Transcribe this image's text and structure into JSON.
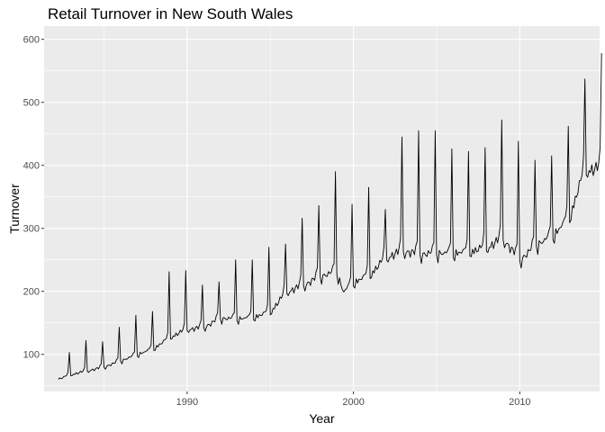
{
  "chart_data": {
    "type": "line",
    "title": "Retail Turnover in New South Wales",
    "xlabel": "Year",
    "ylabel": "Turnover",
    "xlim": [
      1981.4,
      2014.8
    ],
    "ylim": [
      41,
      621
    ],
    "x_ticks": [
      1990,
      2000,
      2010
    ],
    "x_tick_labels": [
      "1990",
      "2000",
      "2010"
    ],
    "y_ticks": [
      100,
      200,
      300,
      400,
      500,
      600
    ],
    "y_tick_labels": [
      "100",
      "200",
      "300",
      "400",
      "500",
      "600"
    ],
    "grid": true,
    "legend": "none",
    "colors": {
      "panel": "#ebebeb",
      "grid": "#ffffff",
      "line": "#000000"
    },
    "series": [
      {
        "frequency": "monthly",
        "start": "1982-04",
        "anchors": [
          {
            "x": 1982.4,
            "y": 62
          },
          {
            "x": 1983.0,
            "y": 68
          },
          {
            "x": 1984.0,
            "y": 74
          },
          {
            "x": 1985.0,
            "y": 80
          },
          {
            "x": 1986.0,
            "y": 90
          },
          {
            "x": 1987.0,
            "y": 100
          },
          {
            "x": 1988.0,
            "y": 110
          },
          {
            "x": 1989.0,
            "y": 128
          },
          {
            "x": 1990.0,
            "y": 140
          },
          {
            "x": 1991.0,
            "y": 143
          },
          {
            "x": 1992.0,
            "y": 158
          },
          {
            "x": 1993.0,
            "y": 157
          },
          {
            "x": 1994.0,
            "y": 160
          },
          {
            "x": 1995.0,
            "y": 168
          },
          {
            "x": 1996.0,
            "y": 200
          },
          {
            "x": 1997.0,
            "y": 210
          },
          {
            "x": 1998.0,
            "y": 225
          },
          {
            "x": 1999.0,
            "y": 232
          },
          {
            "x": 1999.4,
            "y": 200
          },
          {
            "x": 2000.0,
            "y": 215
          },
          {
            "x": 2001.0,
            "y": 228
          },
          {
            "x": 2002.0,
            "y": 255
          },
          {
            "x": 2003.0,
            "y": 265
          },
          {
            "x": 2004.0,
            "y": 260
          },
          {
            "x": 2005.0,
            "y": 262
          },
          {
            "x": 2006.0,
            "y": 262
          },
          {
            "x": 2007.0,
            "y": 265
          },
          {
            "x": 2008.0,
            "y": 270
          },
          {
            "x": 2009.0,
            "y": 285
          },
          {
            "x": 2010.0,
            "y": 250
          },
          {
            "x": 2011.0,
            "y": 275
          },
          {
            "x": 2012.0,
            "y": 290
          },
          {
            "x": 2013.0,
            "y": 320
          },
          {
            "x": 2013.6,
            "y": 370
          },
          {
            "x": 2014.0,
            "y": 395
          }
        ],
        "december_peaks": [
          {
            "year": 1982,
            "y": 103
          },
          {
            "year": 1983,
            "y": 122
          },
          {
            "year": 1984,
            "y": 120
          },
          {
            "year": 1985,
            "y": 143
          },
          {
            "year": 1986,
            "y": 162
          },
          {
            "year": 1987,
            "y": 168
          },
          {
            "year": 1988,
            "y": 231
          },
          {
            "year": 1989,
            "y": 233
          },
          {
            "year": 1990,
            "y": 210
          },
          {
            "year": 1991,
            "y": 215
          },
          {
            "year": 1992,
            "y": 250
          },
          {
            "year": 1993,
            "y": 250
          },
          {
            "year": 1994,
            "y": 270
          },
          {
            "year": 1995,
            "y": 275
          },
          {
            "year": 1996,
            "y": 316
          },
          {
            "year": 1997,
            "y": 336
          },
          {
            "year": 1998,
            "y": 390
          },
          {
            "year": 1999,
            "y": 338
          },
          {
            "year": 2000,
            "y": 365
          },
          {
            "year": 2001,
            "y": 330
          },
          {
            "year": 2002,
            "y": 445
          },
          {
            "year": 2003,
            "y": 455
          },
          {
            "year": 2004,
            "y": 455
          },
          {
            "year": 2005,
            "y": 426
          },
          {
            "year": 2006,
            "y": 422
          },
          {
            "year": 2007,
            "y": 428
          },
          {
            "year": 2008,
            "y": 472
          },
          {
            "year": 2009,
            "y": 438
          },
          {
            "year": 2010,
            "y": 408
          },
          {
            "year": 2011,
            "y": 415
          },
          {
            "year": 2012,
            "y": 462
          },
          {
            "year": 2013,
            "y": 537
          },
          {
            "year": 2014,
            "y": 578
          }
        ]
      }
    ]
  }
}
